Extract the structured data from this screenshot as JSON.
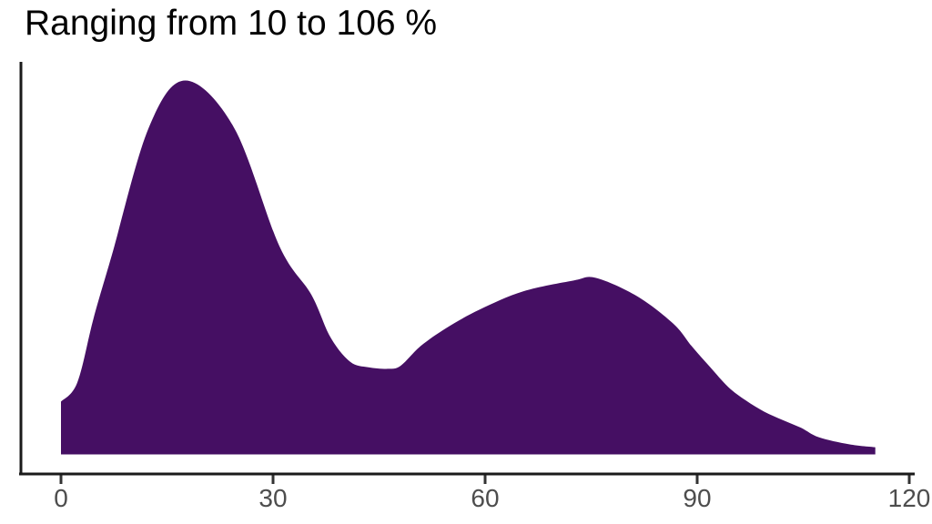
{
  "chart_data": {
    "type": "area",
    "subtype": "density",
    "title": "Ranging from 10 to 106 %",
    "xlabel": "",
    "ylabel": "",
    "legend_position": "none",
    "grid": false,
    "x_ticks": [
      0,
      30,
      60,
      90,
      120
    ],
    "x_axis_range": [
      0,
      120
    ],
    "data_range_percent": [
      10,
      106
    ],
    "fill_color": "#450f63",
    "axis_line_color": "#1a1a1a",
    "tick_mark_color": "#333333",
    "tick_label_color": "#4d4d4d",
    "title_color": "#000000",
    "peaks": [
      {
        "x": 17.6,
        "rel_height": 1.0
      },
      {
        "x": 75.7,
        "rel_height": 0.472
      }
    ],
    "valley": {
      "x": 46.4,
      "rel_height": 0.229
    },
    "curve": {
      "x_unit": "percent",
      "y_unit": "relative_density_0_to_1",
      "clipped_left_x": 0,
      "clipped_right_x": 115.2,
      "points": [
        [
          0,
          0.141
        ],
        [
          2.3,
          0.192
        ],
        [
          4.6,
          0.363
        ],
        [
          7.2,
          0.533
        ],
        [
          12.4,
          0.873
        ],
        [
          17.6,
          1.0
        ],
        [
          24.5,
          0.873
        ],
        [
          30.9,
          0.557
        ],
        [
          35.4,
          0.428
        ],
        [
          38.1,
          0.314
        ],
        [
          40.9,
          0.248
        ],
        [
          43.5,
          0.233
        ],
        [
          46.4,
          0.229
        ],
        [
          48.1,
          0.238
        ],
        [
          50.9,
          0.29
        ],
        [
          54.5,
          0.338
        ],
        [
          59.2,
          0.387
        ],
        [
          65.4,
          0.436
        ],
        [
          72.5,
          0.465
        ],
        [
          75.7,
          0.472
        ],
        [
          81.5,
          0.423
        ],
        [
          86.6,
          0.35
        ],
        [
          89.2,
          0.29
        ],
        [
          91.8,
          0.234
        ],
        [
          94.4,
          0.18
        ],
        [
          96.9,
          0.144
        ],
        [
          99.5,
          0.114
        ],
        [
          102.1,
          0.092
        ],
        [
          104.7,
          0.071
        ],
        [
          107.2,
          0.046
        ],
        [
          111.5,
          0.027
        ],
        [
          115.2,
          0.019
        ]
      ]
    }
  }
}
